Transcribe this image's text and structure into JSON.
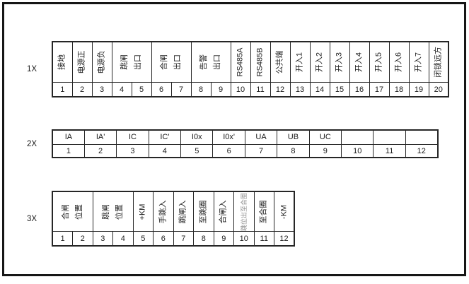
{
  "diagram": {
    "name": "terminal-block-wiring-diagram",
    "colors": {
      "background": "#ffffff",
      "border": "#262626",
      "frame": "#161616",
      "text": "#1a1a1a",
      "muted_text": "#8d8d8d"
    },
    "blocks": [
      {
        "id": "1X",
        "label": "1X",
        "cells": [
          {
            "text": "接地",
            "span": 1,
            "vertical": true
          },
          {
            "text": "电源正",
            "span": 1,
            "vertical": true
          },
          {
            "text": "电源负",
            "span": 1,
            "vertical": true
          },
          {
            "text": "跳闸\n出口",
            "span": 2,
            "vertical": true
          },
          {
            "text": "合闸\n出口",
            "span": 2,
            "vertical": true
          },
          {
            "text": "告警\n出口",
            "span": 2,
            "vertical": true
          },
          {
            "text": "RS485A",
            "span": 1,
            "vertical": true
          },
          {
            "text": "RS485B",
            "span": 1,
            "vertical": true
          },
          {
            "text": "公共端",
            "span": 1,
            "vertical": true
          },
          {
            "text": "开入1",
            "span": 1,
            "vertical": true
          },
          {
            "text": "开入2",
            "span": 1,
            "vertical": true
          },
          {
            "text": "开入3",
            "span": 1,
            "vertical": true
          },
          {
            "text": "开入4",
            "span": 1,
            "vertical": true
          },
          {
            "text": "开入5",
            "span": 1,
            "vertical": true
          },
          {
            "text": "开入6",
            "span": 1,
            "vertical": true
          },
          {
            "text": "开入7",
            "span": 1,
            "vertical": true
          },
          {
            "text": "闭锁远方",
            "span": 1,
            "vertical": true
          }
        ],
        "numbers": [
          "1",
          "2",
          "3",
          "4",
          "5",
          "6",
          "7",
          "8",
          "9",
          "10",
          "11",
          "12",
          "13",
          "14",
          "15",
          "16",
          "17",
          "18",
          "19",
          "20"
        ]
      },
      {
        "id": "2X",
        "label": "2X",
        "cells": [
          {
            "text": "IA",
            "span": 1,
            "vertical": false
          },
          {
            "text": "IA'",
            "span": 1,
            "vertical": false
          },
          {
            "text": "IC",
            "span": 1,
            "vertical": false
          },
          {
            "text": "IC'",
            "span": 1,
            "vertical": false
          },
          {
            "text": "I0x",
            "span": 1,
            "vertical": false
          },
          {
            "text": "I0x'",
            "span": 1,
            "vertical": false
          },
          {
            "text": "UA",
            "span": 1,
            "vertical": false
          },
          {
            "text": "UB",
            "span": 1,
            "vertical": false
          },
          {
            "text": "UC",
            "span": 1,
            "vertical": false
          },
          {
            "text": "",
            "span": 1,
            "vertical": false
          },
          {
            "text": "",
            "span": 1,
            "vertical": false
          },
          {
            "text": "",
            "span": 1,
            "vertical": false
          }
        ],
        "numbers": [
          "1",
          "2",
          "3",
          "4",
          "5",
          "6",
          "7",
          "8",
          "9",
          "10",
          "11",
          "12"
        ]
      },
      {
        "id": "3X",
        "label": "3X",
        "cells": [
          {
            "text": "合闸\n位置",
            "span": 2,
            "vertical": true
          },
          {
            "text": "跳闸\n位置",
            "span": 2,
            "vertical": true
          },
          {
            "text": "+KM",
            "span": 1,
            "vertical": true
          },
          {
            "text": "手跳入",
            "span": 1,
            "vertical": true
          },
          {
            "text": "跳闸入",
            "span": 1,
            "vertical": true
          },
          {
            "text": "至跳圈",
            "span": 1,
            "vertical": true
          },
          {
            "text": "合闸入",
            "span": 1,
            "vertical": true
          },
          {
            "text": "跳位出至合圈",
            "span": 1,
            "vertical": true,
            "muted": true
          },
          {
            "text": "至合圈",
            "span": 1,
            "vertical": true
          },
          {
            "text": "-KM",
            "span": 1,
            "vertical": true
          }
        ],
        "numbers": [
          "1",
          "2",
          "3",
          "4",
          "5",
          "6",
          "7",
          "8",
          "9",
          "10",
          "11",
          "12"
        ]
      }
    ]
  }
}
